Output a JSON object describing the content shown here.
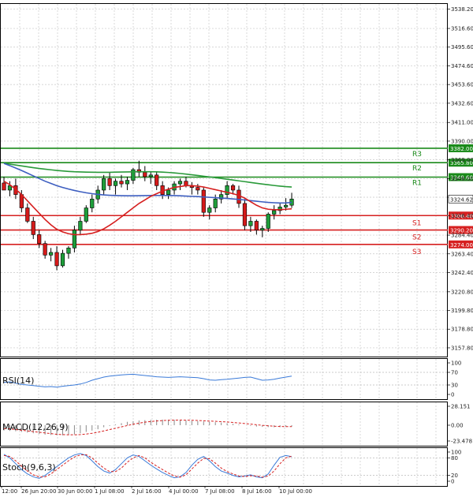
{
  "chart_data": [
    {
      "type": "candlestick",
      "title": "",
      "y_ticks": [
        "3538.20",
        "3516.60",
        "3495.60",
        "3474.60",
        "3453.60",
        "3432.60",
        "3411.00",
        "3390.00",
        "3369.00",
        "3348.00",
        "3327.00",
        "3306.40",
        "3284.40",
        "3263.40",
        "3242.40",
        "3220.80",
        "3199.80",
        "3178.80",
        "3157.80"
      ],
      "ylim": [
        3148,
        3545
      ],
      "x_labels": [
        "12:00",
        "26 Jun 20:00",
        "30 Jun 00:00",
        "1 Jul 08:00",
        "2 Jul 16:00",
        "4 Jul 00:00",
        "7 Jul 08:00",
        "8 Jul 16:00",
        "10 Jul 00:00"
      ],
      "current_price": "3324.62",
      "levels": [
        {
          "name": "R3",
          "value": 3382.0,
          "label": "3382.00",
          "color": "#1a8a1a"
        },
        {
          "name": "R2",
          "value": 3365.8,
          "label": "3365.80",
          "color": "#1a8a1a"
        },
        {
          "name": "R1",
          "value": 3349.6,
          "label": "3349.60",
          "color": "#1a8a1a"
        },
        {
          "name": "S1",
          "value": 3306.4,
          "label": "3306.40",
          "color": "#d62020"
        },
        {
          "name": "S2",
          "value": 3290.2,
          "label": "3290.20",
          "color": "#d62020"
        },
        {
          "name": "S3",
          "value": 3274.0,
          "label": "3274.00",
          "color": "#d62020"
        }
      ],
      "candles": [
        [
          3343,
          3350,
          3335,
          3335
        ],
        [
          3335,
          3345,
          3328,
          3340
        ],
        [
          3340,
          3348,
          3325,
          3330
        ],
        [
          3330,
          3335,
          3310,
          3315
        ],
        [
          3315,
          3320,
          3298,
          3300
        ],
        [
          3300,
          3305,
          3280,
          3285
        ],
        [
          3285,
          3290,
          3270,
          3275
        ],
        [
          3275,
          3278,
          3258,
          3262
        ],
        [
          3262,
          3270,
          3255,
          3265
        ],
        [
          3265,
          3272,
          3245,
          3250
        ],
        [
          3250,
          3268,
          3248,
          3264
        ],
        [
          3264,
          3272,
          3258,
          3270
        ],
        [
          3270,
          3295,
          3265,
          3290
        ],
        [
          3290,
          3305,
          3285,
          3300
        ],
        [
          3300,
          3318,
          3298,
          3315
        ],
        [
          3315,
          3330,
          3310,
          3325
        ],
        [
          3325,
          3340,
          3320,
          3335
        ],
        [
          3335,
          3352,
          3330,
          3348
        ],
        [
          3348,
          3355,
          3335,
          3340
        ],
        [
          3340,
          3348,
          3330,
          3345
        ],
        [
          3345,
          3352,
          3338,
          3342
        ],
        [
          3342,
          3350,
          3335,
          3346
        ],
        [
          3346,
          3360,
          3342,
          3358
        ],
        [
          3358,
          3368,
          3350,
          3355
        ],
        [
          3355,
          3362,
          3345,
          3350
        ],
        [
          3350,
          3356,
          3342,
          3352
        ],
        [
          3352,
          3355,
          3335,
          3340
        ],
        [
          3340,
          3345,
          3325,
          3330
        ],
        [
          3330,
          3338,
          3325,
          3335
        ],
        [
          3335,
          3345,
          3330,
          3342
        ],
        [
          3342,
          3348,
          3335,
          3345
        ],
        [
          3345,
          3350,
          3338,
          3340
        ],
        [
          3340,
          3344,
          3330,
          3338
        ],
        [
          3338,
          3342,
          3330,
          3335
        ],
        [
          3335,
          3338,
          3305,
          3310
        ],
        [
          3310,
          3318,
          3302,
          3315
        ],
        [
          3315,
          3330,
          3310,
          3325
        ],
        [
          3325,
          3335,
          3320,
          3330
        ],
        [
          3330,
          3345,
          3326,
          3340
        ],
        [
          3340,
          3342,
          3330,
          3335
        ],
        [
          3335,
          3340,
          3315,
          3320
        ],
        [
          3320,
          3325,
          3290,
          3295
        ],
        [
          3295,
          3305,
          3288,
          3300
        ],
        [
          3300,
          3302,
          3285,
          3290
        ],
        [
          3290,
          3295,
          3282,
          3292
        ],
        [
          3292,
          3310,
          3288,
          3308
        ],
        [
          3308,
          3318,
          3302,
          3312
        ],
        [
          3312,
          3320,
          3308,
          3316
        ],
        [
          3316,
          3326,
          3312,
          3318
        ],
        [
          3318,
          3332,
          3315,
          3325
        ]
      ],
      "series": [
        {
          "name": "MA slow",
          "color": "#2a9a3a",
          "values": [
            3365,
            3364.2,
            3363.2,
            3362.2,
            3361.2,
            3360.2,
            3359.3,
            3358.5,
            3357.8,
            3357.1,
            3356.5,
            3356,
            3355.6,
            3355.4,
            3355.2,
            3355.1,
            3355,
            3355,
            3355,
            3355.2,
            3355.3,
            3355.4,
            3355.5,
            3355.6,
            3355.6,
            3355.6,
            3355.5,
            3355.2,
            3354.8,
            3354.3,
            3353.7,
            3353,
            3352.2,
            3351.4,
            3350.6,
            3349.8,
            3349,
            3348.1,
            3347.2,
            3346.3,
            3345.4,
            3344.5,
            3343.6,
            3342.7,
            3341.8,
            3341,
            3340.2,
            3339.5,
            3338.9,
            3338.5
          ]
        },
        {
          "name": "MA medium",
          "color": "#3d5ec0",
          "values": [
            3365,
            3362.5,
            3359.8,
            3357,
            3354,
            3351,
            3348,
            3345,
            3342.5,
            3340,
            3338,
            3336.2,
            3334.6,
            3333.2,
            3332,
            3331,
            3330.2,
            3329.6,
            3329.2,
            3328.9,
            3328.7,
            3328.6,
            3328.6,
            3328.7,
            3328.8,
            3328.9,
            3329,
            3329,
            3328.9,
            3328.8,
            3328.6,
            3328.3,
            3328,
            3327.7,
            3327.3,
            3326.9,
            3326.5,
            3326.1,
            3325.6,
            3325.1,
            3324.5,
            3323.9,
            3323.2,
            3322.5,
            3321.8,
            3321.2,
            3320.8,
            3320.5,
            3320.6,
            3321.2
          ]
        },
        {
          "name": "MA fast",
          "color": "#d61f1f",
          "values": [
            3345,
            3341,
            3336,
            3330,
            3323,
            3316,
            3309,
            3302,
            3296,
            3291,
            3288,
            3286,
            3285,
            3285,
            3285.5,
            3286.5,
            3288.5,
            3291.5,
            3295.5,
            3300,
            3305,
            3310,
            3315,
            3320,
            3324,
            3328,
            3331,
            3334,
            3336,
            3338,
            3339,
            3340,
            3340,
            3339.5,
            3338.5,
            3337,
            3335.5,
            3334,
            3332.5,
            3331,
            3329,
            3326,
            3322,
            3318,
            3315,
            3313.5,
            3313,
            3313,
            3313.5,
            3314
          ]
        }
      ]
    },
    {
      "type": "line",
      "label": "RSI(14)",
      "y_ticks": [
        "100",
        "70",
        "30",
        "0"
      ],
      "ylim": [
        0,
        100
      ],
      "levels": [
        70,
        30
      ],
      "color": "#3a7ad8",
      "values": [
        38,
        40,
        36,
        32,
        30,
        28,
        26,
        24,
        25,
        23,
        26,
        28,
        30,
        33,
        38,
        45,
        50,
        55,
        58,
        60,
        62,
        63,
        64,
        62,
        60,
        58,
        56,
        55,
        54,
        55,
        56,
        55,
        54,
        53,
        50,
        46,
        45,
        47,
        48,
        50,
        52,
        54,
        55,
        50,
        45,
        46,
        48,
        52,
        55,
        58
      ]
    },
    {
      "type": "bar",
      "label": "MACD(12,26,9)",
      "y_ticks": [
        "28.151",
        "0.00",
        "-23.478"
      ],
      "ylim": [
        -23.478,
        28.151
      ],
      "bar_color": "#888888",
      "signal_color": "#d61f1f",
      "values": [
        -8,
        -8.5,
        -9,
        -10,
        -11,
        -12,
        -13,
        -14,
        -14.5,
        -15,
        -15,
        -14.5,
        -13.5,
        -12,
        -10,
        -8,
        -6,
        -3,
        -1,
        1,
        3,
        5,
        6,
        7,
        7.5,
        8,
        8.2,
        8.3,
        8.2,
        8,
        7.5,
        7,
        6.5,
        6,
        5.5,
        5,
        4.5,
        4,
        3,
        2,
        1,
        0,
        -1,
        -2,
        -2.5,
        -2.8,
        -3,
        -2.8,
        -2.5,
        -2
      ],
      "signal": [
        -5,
        -5.5,
        -6.5,
        -7.5,
        -8.5,
        -9.5,
        -10.5,
        -11.5,
        -12.5,
        -13.5,
        -14,
        -14.3,
        -14.3,
        -14,
        -13.2,
        -12,
        -10.5,
        -8.5,
        -6.5,
        -4.5,
        -2.5,
        -0.5,
        1.5,
        3,
        4.5,
        5.5,
        6.3,
        6.9,
        7.3,
        7.5,
        7.6,
        7.5,
        7.3,
        7,
        6.6,
        6.2,
        5.8,
        5.3,
        4.8,
        4.1,
        3.3,
        2.5,
        1.6,
        0.7,
        -0.2,
        -0.9,
        -1.5,
        -1.9,
        -2.1,
        -2.1
      ]
    },
    {
      "type": "line",
      "label": "Stoch(9,6,3)",
      "y_ticks": [
        "100",
        "80",
        "20",
        "0"
      ],
      "ylim": [
        0,
        100
      ],
      "levels": [
        80,
        20
      ],
      "k_color": "#3a7ad8",
      "d_color": "#d61f1f",
      "k": [
        92,
        80,
        60,
        40,
        25,
        15,
        10,
        20,
        35,
        50,
        65,
        80,
        90,
        95,
        88,
        70,
        50,
        35,
        28,
        40,
        60,
        80,
        90,
        85,
        70,
        55,
        42,
        30,
        20,
        12,
        15,
        30,
        55,
        75,
        85,
        70,
        50,
        35,
        28,
        20,
        15,
        18,
        22,
        15,
        12,
        25,
        55,
        82,
        88,
        84
      ],
      "d": [
        88,
        85,
        70,
        52,
        35,
        22,
        15,
        15,
        25,
        40,
        55,
        70,
        83,
        90,
        91,
        80,
        62,
        45,
        33,
        33,
        45,
        65,
        80,
        88,
        80,
        65,
        52,
        40,
        28,
        18,
        14,
        22,
        42,
        62,
        78,
        77,
        62,
        45,
        33,
        25,
        18,
        16,
        19,
        18,
        14,
        18,
        35,
        60,
        80,
        86
      ]
    }
  ]
}
